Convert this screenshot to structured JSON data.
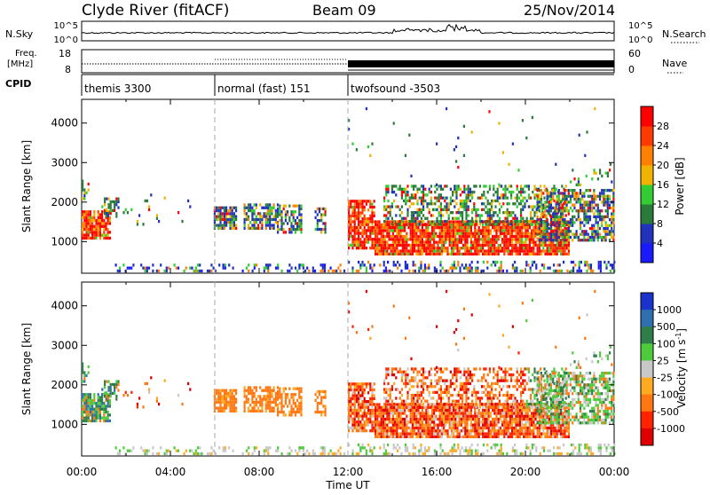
{
  "header": {
    "station": "Clyde River (fitACF)",
    "beam": "Beam 09",
    "date": "25/Nov/2014"
  },
  "sky_panel": {
    "left_label": "N.Sky",
    "left_ticks": [
      "10^5",
      "10^0"
    ],
    "right_ticks": [
      "10^5",
      "10^0"
    ],
    "right_label": "N.Search"
  },
  "freq_panel": {
    "left_label_1": "Freq.",
    "left_label_2": "[MHz]",
    "left_ticks": [
      "18",
      "8"
    ],
    "right_ticks": [
      "60",
      "0"
    ],
    "right_label": "Nave"
  },
  "cpid_panel": {
    "label": "CPID",
    "segments": [
      {
        "name": "themis 3300",
        "start_hour": 0,
        "end_hour": 6
      },
      {
        "name": "normal (fast) 151",
        "start_hour": 6,
        "end_hour": 12
      },
      {
        "name": "twofsound -3503",
        "start_hour": 12,
        "end_hour": 24
      }
    ]
  },
  "chart_data": [
    {
      "type": "heatmap",
      "quantity": "power",
      "ylabel": "Slant Range [km]",
      "ylim": [
        200,
        4600
      ],
      "yticks": [
        "1000",
        "2000",
        "3000",
        "4000"
      ],
      "colorbar_label": "Power [dB]",
      "colorbar_ticks": [
        "4",
        "8",
        "12",
        "16",
        "20",
        "24",
        "28"
      ],
      "colorbar_range": [
        0,
        32
      ],
      "colors": [
        "#1a1aff",
        "#2233bb",
        "#2a7b3a",
        "#33cc33",
        "#f0b400",
        "#ff8000",
        "#ff3a00",
        "#ff0000"
      ]
    },
    {
      "type": "heatmap",
      "quantity": "velocity",
      "ylabel": "Slant Range [km]",
      "ylim": [
        200,
        4600
      ],
      "yticks": [
        "1000",
        "2000",
        "3000",
        "4000"
      ],
      "colorbar_label": "Velocity  [m s",
      "colorbar_label_sup": "-1",
      "colorbar_label_end": "]",
      "colorbar_ticks": [
        "1000",
        "500",
        "100",
        "25",
        "-25",
        "-100",
        "-500",
        "-1000"
      ],
      "colors": [
        "#1a33cc",
        "#2f6fb0",
        "#2e7d4a",
        "#4ecb3a",
        "#c8c8c8",
        "#ffaa22",
        "#ff7711",
        "#ff2200",
        "#e00000"
      ]
    }
  ],
  "time_axis": {
    "label": "Time UT",
    "ticks": [
      "00:00",
      "04:00",
      "08:00",
      "12:00",
      "16:00",
      "20:00",
      "00:00"
    ],
    "xlim": [
      0,
      24
    ]
  }
}
